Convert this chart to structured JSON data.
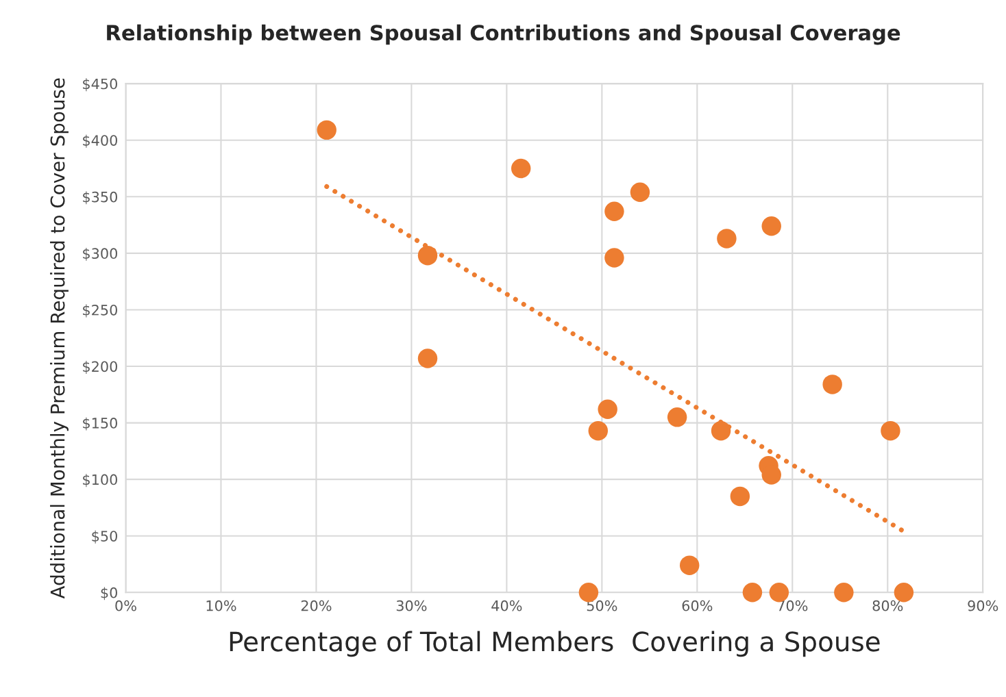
{
  "chart_data": {
    "type": "scatter",
    "title": "Relationship between Spousal Contributions and Spousal Coverage",
    "xlabel": "Percentage of Total Members  Covering a Spouse",
    "ylabel": "Additional Monthly Premium Required to Cover Spouse",
    "grid": true,
    "marker": "circle",
    "xlim": [
      0,
      90
    ],
    "ylim": [
      0,
      450
    ],
    "xticks": [
      {
        "value": 0,
        "label": "0%"
      },
      {
        "value": 10,
        "label": "10%"
      },
      {
        "value": 20,
        "label": "20%"
      },
      {
        "value": 30,
        "label": "30%"
      },
      {
        "value": 40,
        "label": "40%"
      },
      {
        "value": 50,
        "label": "50%"
      },
      {
        "value": 60,
        "label": "60%"
      },
      {
        "value": 70,
        "label": "70%"
      },
      {
        "value": 80,
        "label": "80%"
      },
      {
        "value": 90,
        "label": "90%"
      }
    ],
    "yticks": [
      {
        "value": 0,
        "label": "$0"
      },
      {
        "value": 50,
        "label": "$50"
      },
      {
        "value": 100,
        "label": "$100"
      },
      {
        "value": 150,
        "label": "$150"
      },
      {
        "value": 200,
        "label": "$200"
      },
      {
        "value": 250,
        "label": "$250"
      },
      {
        "value": 300,
        "label": "$300"
      },
      {
        "value": 350,
        "label": "$350"
      },
      {
        "value": 400,
        "label": "$400"
      },
      {
        "value": 450,
        "label": "$450"
      }
    ],
    "series": [
      {
        "color": "#ed7d31",
        "x": [
          21.1,
          41.5,
          54.0,
          51.3,
          67.8,
          63.1,
          31.7,
          51.3,
          31.7,
          74.2,
          50.6,
          57.9,
          49.6,
          62.5,
          80.3,
          67.5,
          67.8,
          64.5,
          59.2,
          48.6,
          65.8,
          68.6,
          75.4,
          81.7
        ],
        "values": [
          409,
          375,
          354,
          337,
          324,
          313,
          298,
          296,
          207,
          184,
          162,
          155,
          143,
          143,
          143,
          112,
          104,
          85,
          24,
          0,
          0,
          0,
          0,
          0
        ]
      },
      {
        "type": "line",
        "color": "#ed7d31",
        "marker": "none",
        "line_style": "dotted",
        "x": [
          21.1,
          81.7
        ],
        "values": [
          359,
          54
        ]
      }
    ]
  }
}
